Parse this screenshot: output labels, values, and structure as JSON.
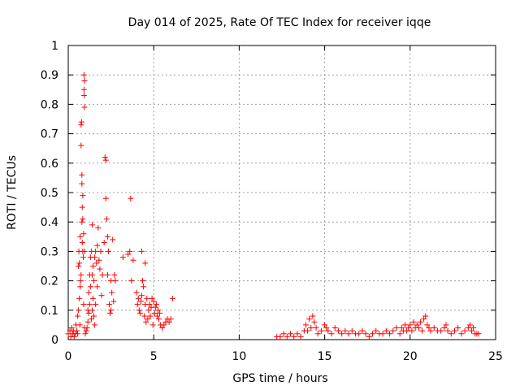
{
  "chart_data": {
    "type": "scatter",
    "title": "Day 014 of 2025, Rate Of TEC Index for receiver iqqe",
    "xlabel": "GPS time / hours",
    "ylabel": "ROTI / TECUs",
    "xlim": [
      0,
      25
    ],
    "ylim": [
      0,
      1
    ],
    "xticks": [
      0,
      5,
      10,
      15,
      20,
      25
    ],
    "yticks": [
      0,
      0.1,
      0.2,
      0.3,
      0.4,
      0.5,
      0.6,
      0.7,
      0.8,
      0.9,
      1
    ],
    "xtick_labels": [
      "0",
      "5",
      "10",
      "15",
      "20",
      "25"
    ],
    "ytick_labels": [
      "0",
      "0.1",
      "0.2",
      "0.3",
      "0.4",
      "0.5",
      "0.6",
      "0.7",
      "0.8",
      "0.9",
      "1"
    ],
    "grid": true,
    "marker": "+",
    "color": "#ff0000",
    "series": [
      {
        "name": "ROTI",
        "points": [
          [
            0.0,
            0.02
          ],
          [
            0.1,
            0.03
          ],
          [
            0.15,
            0.01
          ],
          [
            0.2,
            0.04
          ],
          [
            0.25,
            0.02
          ],
          [
            0.3,
            0.03
          ],
          [
            0.35,
            0.01
          ],
          [
            0.4,
            0.02
          ],
          [
            0.45,
            0.05
          ],
          [
            0.5,
            0.03
          ],
          [
            0.55,
            0.08
          ],
          [
            0.55,
            0.02
          ],
          [
            0.6,
            0.1
          ],
          [
            0.6,
            0.25
          ],
          [
            0.62,
            0.3
          ],
          [
            0.65,
            0.26
          ],
          [
            0.65,
            0.14
          ],
          [
            0.68,
            0.05
          ],
          [
            0.7,
            0.18
          ],
          [
            0.7,
            0.35
          ],
          [
            0.72,
            0.2
          ],
          [
            0.75,
            0.73
          ],
          [
            0.75,
            0.66
          ],
          [
            0.75,
            0.22
          ],
          [
            0.78,
            0.74
          ],
          [
            0.8,
            0.56
          ],
          [
            0.8,
            0.53
          ],
          [
            0.8,
            0.4
          ],
          [
            0.82,
            0.45
          ],
          [
            0.82,
            0.33
          ],
          [
            0.85,
            0.49
          ],
          [
            0.85,
            0.41
          ],
          [
            0.85,
            0.3
          ],
          [
            0.88,
            0.28
          ],
          [
            0.9,
            0.36
          ],
          [
            0.9,
            0.12
          ],
          [
            0.92,
            0.9
          ],
          [
            0.92,
            0.85
          ],
          [
            0.93,
            0.83
          ],
          [
            0.95,
            0.88
          ],
          [
            0.95,
            0.79
          ],
          [
            0.95,
            0.3
          ],
          [
            0.95,
            0.04
          ],
          [
            1.0,
            0.02
          ],
          [
            1.05,
            0.03
          ],
          [
            1.1,
            0.04
          ],
          [
            1.15,
            0.1
          ],
          [
            1.15,
            0.06
          ],
          [
            1.2,
            0.16
          ],
          [
            1.2,
            0.09
          ],
          [
            1.25,
            0.22
          ],
          [
            1.25,
            0.12
          ],
          [
            1.3,
            0.28
          ],
          [
            1.3,
            0.18
          ],
          [
            1.35,
            0.3
          ],
          [
            1.35,
            0.07
          ],
          [
            1.4,
            0.39
          ],
          [
            1.4,
            0.22
          ],
          [
            1.4,
            0.1
          ],
          [
            1.45,
            0.25
          ],
          [
            1.45,
            0.14
          ],
          [
            1.5,
            0.2
          ],
          [
            1.5,
            0.08
          ],
          [
            1.55,
            0.28
          ],
          [
            1.55,
            0.05
          ],
          [
            1.6,
            0.3
          ],
          [
            1.6,
            0.12
          ],
          [
            1.65,
            0.26
          ],
          [
            1.7,
            0.32
          ],
          [
            1.7,
            0.18
          ],
          [
            1.75,
            0.38
          ],
          [
            1.8,
            0.27
          ],
          [
            1.85,
            0.24
          ],
          [
            1.9,
            0.3
          ],
          [
            1.95,
            0.15
          ],
          [
            2.0,
            0.22
          ],
          [
            2.1,
            0.33
          ],
          [
            2.15,
            0.62
          ],
          [
            2.2,
            0.61
          ],
          [
            2.2,
            0.48
          ],
          [
            2.25,
            0.41
          ],
          [
            2.3,
            0.35
          ],
          [
            2.3,
            0.22
          ],
          [
            2.35,
            0.3
          ],
          [
            2.4,
            0.12
          ],
          [
            2.45,
            0.09
          ],
          [
            2.5,
            0.1
          ],
          [
            2.5,
            0.2
          ],
          [
            2.55,
            0.16
          ],
          [
            2.6,
            0.34
          ],
          [
            2.65,
            0.13
          ],
          [
            2.7,
            0.22
          ],
          [
            2.75,
            0.2
          ],
          [
            3.2,
            0.28
          ],
          [
            3.5,
            0.29
          ],
          [
            3.6,
            0.3
          ],
          [
            3.65,
            0.48
          ],
          [
            3.7,
            0.2
          ],
          [
            3.8,
            0.27
          ],
          [
            4.0,
            0.16
          ],
          [
            4.05,
            0.12
          ],
          [
            4.1,
            0.14
          ],
          [
            4.15,
            0.1
          ],
          [
            4.2,
            0.09
          ],
          [
            4.25,
            0.13
          ],
          [
            4.3,
            0.3
          ],
          [
            4.3,
            0.15
          ],
          [
            4.35,
            0.2
          ],
          [
            4.4,
            0.18
          ],
          [
            4.45,
            0.08
          ],
          [
            4.5,
            0.26
          ],
          [
            4.5,
            0.12
          ],
          [
            4.55,
            0.06
          ],
          [
            4.6,
            0.14
          ],
          [
            4.65,
            0.07
          ],
          [
            4.7,
            0.1
          ],
          [
            4.75,
            0.12
          ],
          [
            4.8,
            0.08
          ],
          [
            4.85,
            0.11
          ],
          [
            4.9,
            0.14
          ],
          [
            4.95,
            0.05
          ],
          [
            5.0,
            0.13
          ],
          [
            5.05,
            0.09
          ],
          [
            5.1,
            0.11
          ],
          [
            5.15,
            0.12
          ],
          [
            5.2,
            0.08
          ],
          [
            5.25,
            0.1
          ],
          [
            5.3,
            0.07
          ],
          [
            5.35,
            0.09
          ],
          [
            5.4,
            0.05
          ],
          [
            5.5,
            0.04
          ],
          [
            5.6,
            0.05
          ],
          [
            5.7,
            0.06
          ],
          [
            5.8,
            0.07
          ],
          [
            5.9,
            0.06
          ],
          [
            6.0,
            0.07
          ],
          [
            6.1,
            0.14
          ],
          [
            12.2,
            0.01
          ],
          [
            12.4,
            0.01
          ],
          [
            12.6,
            0.02
          ],
          [
            12.8,
            0.01
          ],
          [
            13.0,
            0.02
          ],
          [
            13.2,
            0.01
          ],
          [
            13.4,
            0.02
          ],
          [
            13.6,
            0.01
          ],
          [
            13.8,
            0.03
          ],
          [
            13.9,
            0.05
          ],
          [
            14.0,
            0.03
          ],
          [
            14.1,
            0.07
          ],
          [
            14.2,
            0.04
          ],
          [
            14.3,
            0.08
          ],
          [
            14.4,
            0.06
          ],
          [
            14.5,
            0.04
          ],
          [
            14.6,
            0.02
          ],
          [
            14.8,
            0.03
          ],
          [
            15.0,
            0.05
          ],
          [
            15.1,
            0.04
          ],
          [
            15.2,
            0.03
          ],
          [
            15.4,
            0.02
          ],
          [
            15.6,
            0.04
          ],
          [
            15.8,
            0.03
          ],
          [
            16.0,
            0.02
          ],
          [
            16.2,
            0.03
          ],
          [
            16.4,
            0.02
          ],
          [
            16.6,
            0.03
          ],
          [
            16.8,
            0.02
          ],
          [
            17.0,
            0.02
          ],
          [
            17.2,
            0.03
          ],
          [
            17.4,
            0.02
          ],
          [
            17.6,
            0.01
          ],
          [
            17.8,
            0.02
          ],
          [
            18.0,
            0.03
          ],
          [
            18.2,
            0.02
          ],
          [
            18.4,
            0.02
          ],
          [
            18.6,
            0.03
          ],
          [
            18.8,
            0.02
          ],
          [
            19.0,
            0.03
          ],
          [
            19.2,
            0.04
          ],
          [
            19.4,
            0.02
          ],
          [
            19.5,
            0.04
          ],
          [
            19.6,
            0.03
          ],
          [
            19.7,
            0.05
          ],
          [
            19.8,
            0.03
          ],
          [
            19.9,
            0.04
          ],
          [
            20.0,
            0.05
          ],
          [
            20.1,
            0.03
          ],
          [
            20.2,
            0.06
          ],
          [
            20.3,
            0.04
          ],
          [
            20.4,
            0.05
          ],
          [
            20.5,
            0.04
          ],
          [
            20.6,
            0.06
          ],
          [
            20.7,
            0.03
          ],
          [
            20.8,
            0.07
          ],
          [
            20.9,
            0.08
          ],
          [
            21.0,
            0.05
          ],
          [
            21.1,
            0.04
          ],
          [
            21.2,
            0.03
          ],
          [
            21.4,
            0.04
          ],
          [
            21.6,
            0.03
          ],
          [
            21.8,
            0.03
          ],
          [
            22.0,
            0.04
          ],
          [
            22.1,
            0.05
          ],
          [
            22.2,
            0.03
          ],
          [
            22.4,
            0.02
          ],
          [
            22.6,
            0.03
          ],
          [
            22.8,
            0.04
          ],
          [
            23.0,
            0.02
          ],
          [
            23.2,
            0.03
          ],
          [
            23.4,
            0.04
          ],
          [
            23.5,
            0.05
          ],
          [
            23.6,
            0.03
          ],
          [
            23.7,
            0.04
          ],
          [
            23.8,
            0.02
          ],
          [
            23.9,
            0.02
          ],
          [
            24.0,
            0.02
          ]
        ]
      }
    ]
  }
}
